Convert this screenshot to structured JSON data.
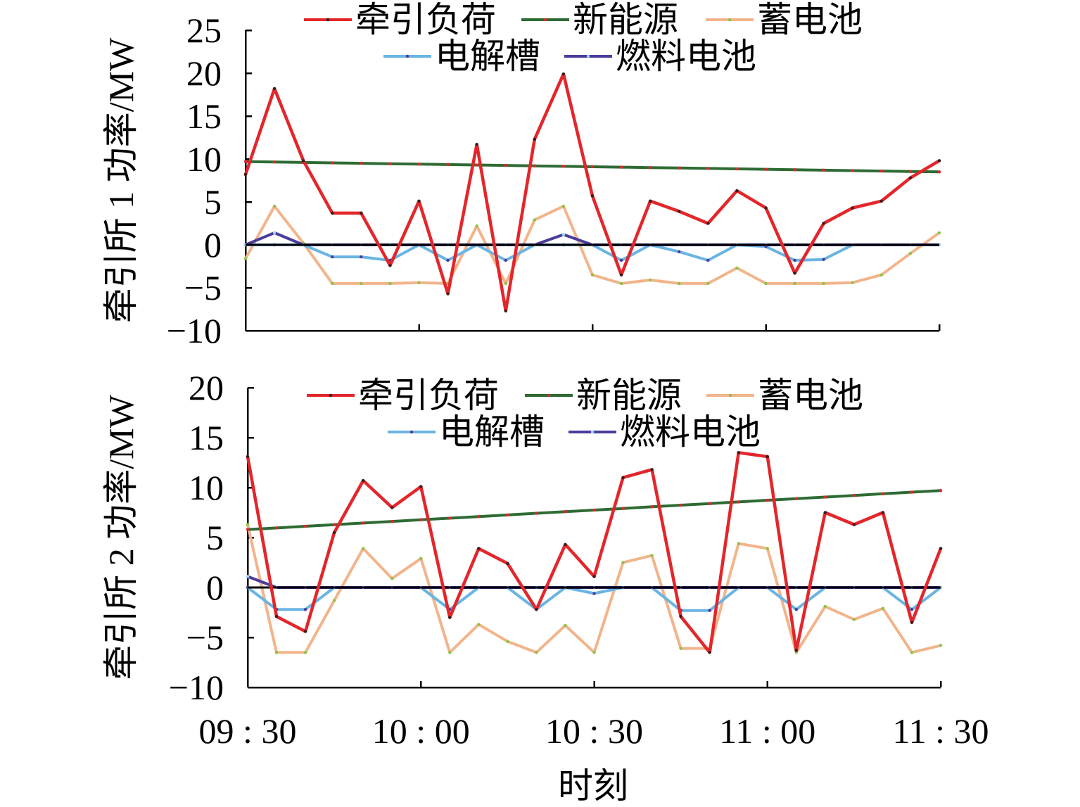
{
  "chart_data": [
    {
      "type": "line",
      "ylabel": "牵引所 1 功率/MW",
      "ylim": [
        -10,
        25
      ],
      "yticks": [
        -10,
        -5,
        0,
        5,
        10,
        15,
        20,
        25
      ],
      "ytick_labels": [
        "−10",
        "−5",
        "0",
        "5",
        "10",
        "15",
        "20",
        "25"
      ],
      "xticks": [
        "09:30",
        "10:00",
        "10:30",
        "11:00",
        "11:30"
      ],
      "grid": false,
      "zero_line": true,
      "legend": "top-center",
      "x": [
        "09:30",
        "09:35",
        "09:40",
        "09:45",
        "09:50",
        "09:55",
        "10:00",
        "10:05",
        "10:10",
        "10:15",
        "10:20",
        "10:25",
        "10:30",
        "10:35",
        "10:40",
        "10:45",
        "10:50",
        "10:55",
        "11:00",
        "11:05",
        "11:10",
        "11:15",
        "11:20",
        "11:25",
        "11:30"
      ],
      "series": [
        {
          "name": "牵引负荷",
          "color": "#e3262b",
          "marker_color": "#3a1c1c",
          "values": [
            8.2,
            18.2,
            9.8,
            3.7,
            3.7,
            -2.4,
            5.1,
            -5.7,
            11.7,
            -7.7,
            12.3,
            19.9,
            5.7,
            -3.5,
            5.1,
            3.9,
            2.5,
            6.3,
            4.3,
            -3.3,
            2.5,
            4.3,
            5.1,
            7.8,
            9.8
          ]
        },
        {
          "name": "新能源",
          "color": "#2e6b34",
          "marker_color": "#e3262b",
          "values": [
            9.7,
            9.65,
            9.6,
            9.55,
            9.5,
            9.45,
            9.4,
            9.35,
            9.3,
            9.25,
            9.2,
            9.15,
            9.1,
            9.05,
            9.0,
            8.95,
            8.9,
            8.85,
            8.8,
            8.75,
            8.7,
            8.65,
            8.6,
            8.55,
            8.5
          ]
        },
        {
          "name": "蓄电池",
          "color": "#f2b48b",
          "marker_color": "#8cc342",
          "values": [
            -1.6,
            4.5,
            0.2,
            -4.5,
            -4.5,
            -4.5,
            -4.4,
            -4.5,
            2.2,
            -4.5,
            2.9,
            4.5,
            -3.5,
            -4.5,
            -4.1,
            -4.5,
            -4.5,
            -2.7,
            -4.5,
            -4.5,
            -4.5,
            -4.4,
            -3.5,
            -1.0,
            1.4
          ]
        },
        {
          "name": "电解槽",
          "color": "#6ab4e3",
          "marker_color": "#4a3c9c",
          "values": [
            0,
            0,
            0,
            -1.4,
            -1.4,
            -1.8,
            0,
            -1.8,
            0,
            -1.8,
            0,
            0,
            0,
            -1.8,
            0,
            -0.8,
            -1.8,
            0,
            -0.2,
            -1.8,
            -1.7,
            0,
            0,
            0,
            0
          ]
        },
        {
          "name": "燃料电池",
          "color": "#4a3c9c",
          "marker_color": "#9fd6f2",
          "values": [
            0,
            1.4,
            0,
            0,
            0,
            0,
            0,
            0,
            0,
            0,
            0,
            1.2,
            0,
            0,
            0,
            0,
            0,
            0,
            0,
            0,
            0,
            0,
            0,
            0,
            0
          ]
        }
      ]
    },
    {
      "type": "line",
      "ylabel": "牵引所 2 功率/MW",
      "xlabel": "时刻",
      "ylim": [
        -10,
        20
      ],
      "yticks": [
        -10,
        -5,
        0,
        5,
        10,
        15,
        20
      ],
      "ytick_labels": [
        "−10",
        "−5",
        "0",
        "5",
        "10",
        "15",
        "20"
      ],
      "xticks": [
        "09:30",
        "10:00",
        "10:30",
        "11:00",
        "11:30"
      ],
      "xtick_labels": [
        "09 : 30",
        "10 : 00",
        "10 : 30",
        "11 : 00",
        "11 : 30"
      ],
      "grid": false,
      "zero_line": true,
      "legend": "top-center",
      "x": [
        "09:30",
        "09:35",
        "09:40",
        "09:45",
        "09:50",
        "09:55",
        "10:00",
        "10:05",
        "10:10",
        "10:15",
        "10:20",
        "10:25",
        "10:30",
        "10:35",
        "10:40",
        "10:45",
        "10:50",
        "10:55",
        "11:00",
        "11:05",
        "11:10",
        "11:15",
        "11:20",
        "11:25",
        "11:30"
      ],
      "series": [
        {
          "name": "牵引负荷",
          "color": "#e3262b",
          "marker_color": "#3a1c1c",
          "values": [
            13.1,
            -2.9,
            -4.4,
            5.5,
            10.7,
            8.0,
            10.1,
            -3.0,
            3.9,
            2.4,
            -2.2,
            4.3,
            1.1,
            11.0,
            11.8,
            -2.9,
            -6.5,
            13.5,
            13.1,
            -6.3,
            7.5,
            6.3,
            7.5,
            -3.5,
            3.9
          ]
        },
        {
          "name": "新能源",
          "color": "#2e6b34",
          "marker_color": "#e3262b",
          "values": [
            5.8,
            5.96,
            6.13,
            6.29,
            6.45,
            6.61,
            6.78,
            6.94,
            7.1,
            7.26,
            7.43,
            7.59,
            7.75,
            7.91,
            8.08,
            8.24,
            8.4,
            8.56,
            8.73,
            8.89,
            9.05,
            9.21,
            9.38,
            9.54,
            9.7
          ]
        },
        {
          "name": "蓄电池",
          "color": "#f2b48b",
          "marker_color": "#8cc342",
          "values": [
            6.3,
            -6.5,
            -6.5,
            -1.3,
            3.9,
            0.9,
            2.9,
            -6.5,
            -3.7,
            -5.4,
            -6.5,
            -3.8,
            -6.5,
            2.5,
            3.2,
            -6.1,
            -6.1,
            4.4,
            3.9,
            -6.5,
            -1.9,
            -3.2,
            -2.1,
            -6.5,
            -5.8
          ]
        },
        {
          "name": "电解槽",
          "color": "#6ab4e3",
          "marker_color": "#4a3c9c",
          "values": [
            0,
            -2.2,
            -2.2,
            0,
            0,
            0,
            0,
            -2.2,
            0,
            0,
            -2.2,
            0,
            -0.6,
            0,
            0,
            -2.3,
            -2.3,
            0,
            0,
            -2.2,
            0,
            0,
            0,
            -2.2,
            0
          ]
        },
        {
          "name": "燃料电池",
          "color": "#4a3c9c",
          "marker_color": "#9fd6f2",
          "values": [
            1.1,
            0,
            0,
            0,
            0,
            0,
            0,
            0,
            0,
            0,
            0,
            0,
            0,
            0,
            0,
            0,
            0,
            0,
            0,
            0,
            0,
            0,
            0,
            0,
            0
          ]
        }
      ]
    }
  ]
}
